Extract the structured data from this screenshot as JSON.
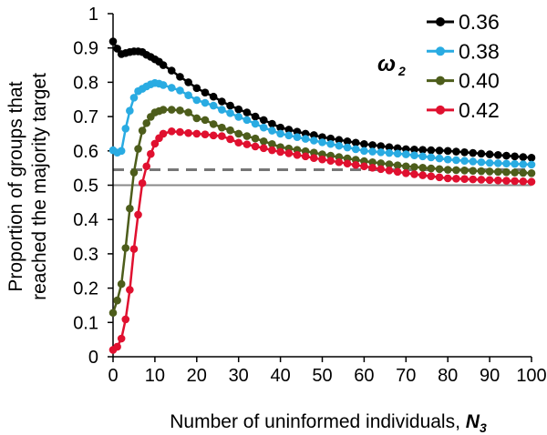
{
  "chart_data": {
    "type": "line",
    "title": "",
    "xlabel": "Number of uninformed individuals, ",
    "xlabel_symbol": "N",
    "xlabel_subscript": "3",
    "ylabel_lines": [
      "Proportion of groups that",
      "reached the majority target"
    ],
    "legend_title_symbol": "ω",
    "legend_title_subscript": "2",
    "legend_position": "top-right",
    "xlim": [
      0,
      100
    ],
    "ylim": [
      0,
      1
    ],
    "x_ticks": [
      "0",
      "10",
      "20",
      "30",
      "40",
      "50",
      "60",
      "70",
      "80",
      "90",
      "100"
    ],
    "y_ticks": [
      "0",
      "0.1",
      "0.2",
      "0.3",
      "0.4",
      "0.5",
      "0.6",
      "0.7",
      "0.8",
      "0.9",
      "1"
    ],
    "grid": false,
    "reference_lines": [
      {
        "y": 0.545,
        "style": "dashed",
        "color": "#777777"
      },
      {
        "y": 0.5,
        "style": "solid",
        "color": "#888888"
      }
    ],
    "x": [
      0,
      1,
      2,
      3,
      4,
      5,
      6,
      7,
      8,
      9,
      10,
      11,
      12,
      14,
      16,
      18,
      20,
      22,
      24,
      26,
      28,
      30,
      32,
      34,
      36,
      38,
      40,
      42,
      44,
      46,
      48,
      50,
      52,
      54,
      56,
      58,
      60,
      62,
      64,
      66,
      68,
      70,
      72,
      74,
      76,
      78,
      80,
      82,
      84,
      86,
      88,
      90,
      92,
      94,
      96,
      98,
      100
    ],
    "series": [
      {
        "name": "0.36",
        "color": "#000000",
        "values": [
          0.919,
          0.898,
          0.882,
          0.885,
          0.888,
          0.89,
          0.89,
          0.888,
          0.88,
          0.874,
          0.867,
          0.86,
          0.85,
          0.834,
          0.816,
          0.8,
          0.783,
          0.77,
          0.758,
          0.744,
          0.732,
          0.721,
          0.712,
          0.7,
          0.69,
          0.679,
          0.668,
          0.662,
          0.656,
          0.65,
          0.646,
          0.64,
          0.636,
          0.632,
          0.628,
          0.624,
          0.62,
          0.617,
          0.614,
          0.611,
          0.608,
          0.605,
          0.604,
          0.603,
          0.602,
          0.601,
          0.6,
          0.598,
          0.596,
          0.594,
          0.592,
          0.59,
          0.588,
          0.586,
          0.584,
          0.582,
          0.58
        ]
      },
      {
        "name": "0.38",
        "color": "#29abe2",
        "values": [
          0.602,
          0.595,
          0.6,
          0.665,
          0.717,
          0.755,
          0.774,
          0.781,
          0.788,
          0.794,
          0.798,
          0.796,
          0.792,
          0.784,
          0.776,
          0.762,
          0.748,
          0.74,
          0.732,
          0.72,
          0.71,
          0.699,
          0.69,
          0.679,
          0.668,
          0.659,
          0.65,
          0.645,
          0.64,
          0.635,
          0.63,
          0.625,
          0.62,
          0.615,
          0.61,
          0.605,
          0.6,
          0.598,
          0.596,
          0.594,
          0.592,
          0.59,
          0.587,
          0.584,
          0.581,
          0.578,
          0.575,
          0.573,
          0.571,
          0.569,
          0.567,
          0.565,
          0.564,
          0.563,
          0.562,
          0.561,
          0.56
        ]
      },
      {
        "name": "0.40",
        "color": "#4d5d1b",
        "values": [
          0.128,
          0.164,
          0.212,
          0.317,
          0.432,
          0.537,
          0.606,
          0.659,
          0.681,
          0.699,
          0.712,
          0.716,
          0.72,
          0.72,
          0.718,
          0.712,
          0.695,
          0.69,
          0.678,
          0.668,
          0.66,
          0.65,
          0.643,
          0.636,
          0.628,
          0.62,
          0.611,
          0.607,
          0.603,
          0.599,
          0.595,
          0.59,
          0.586,
          0.582,
          0.578,
          0.574,
          0.57,
          0.567,
          0.564,
          0.561,
          0.558,
          0.555,
          0.553,
          0.551,
          0.549,
          0.547,
          0.545,
          0.544,
          0.543,
          0.542,
          0.541,
          0.54,
          0.539,
          0.538,
          0.537,
          0.536,
          0.535
        ]
      },
      {
        "name": "0.42",
        "color": "#e0102f",
        "values": [
          0.02,
          0.029,
          0.053,
          0.109,
          0.195,
          0.314,
          0.414,
          0.506,
          0.555,
          0.591,
          0.621,
          0.637,
          0.65,
          0.657,
          0.655,
          0.652,
          0.65,
          0.648,
          0.645,
          0.643,
          0.634,
          0.624,
          0.619,
          0.613,
          0.608,
          0.602,
          0.597,
          0.593,
          0.588,
          0.584,
          0.579,
          0.575,
          0.571,
          0.567,
          0.563,
          0.559,
          0.555,
          0.551,
          0.547,
          0.543,
          0.539,
          0.535,
          0.532,
          0.529,
          0.526,
          0.523,
          0.52,
          0.519,
          0.518,
          0.517,
          0.516,
          0.515,
          0.514,
          0.513,
          0.512,
          0.511,
          0.51
        ]
      }
    ]
  }
}
